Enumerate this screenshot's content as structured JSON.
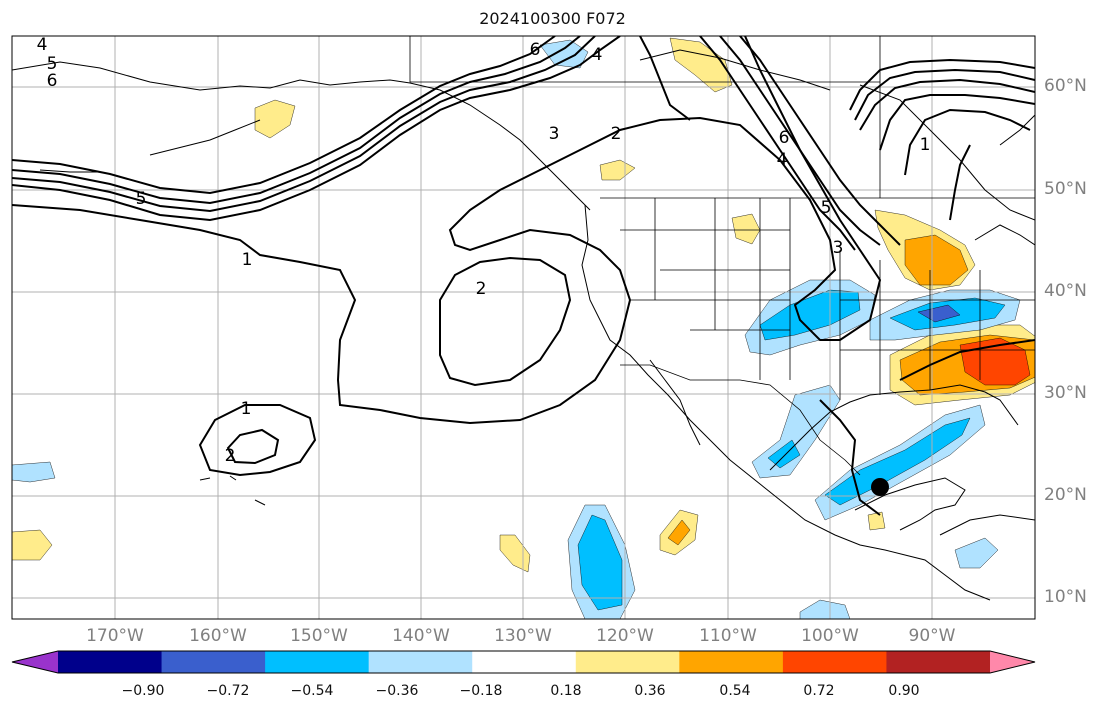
{
  "title": "2024100300 F072",
  "map": {
    "projection": "PlateCarree",
    "extent_lon": [
      -180,
      -80
    ],
    "extent_lat": [
      8,
      65
    ],
    "marker": {
      "label": "storm-center",
      "lon": -94.5,
      "lat": 20.5,
      "color": "#000000"
    }
  },
  "longitude_labels": [
    "170°W",
    "160°W",
    "150°W",
    "140°W",
    "130°W",
    "120°W",
    "110°W",
    "100°W",
    "90°W"
  ],
  "latitude_labels": [
    "60°N",
    "50°N",
    "40°N",
    "30°N",
    "20°N",
    "10°N"
  ],
  "contour_labels": [
    "4",
    "5",
    "6",
    "6",
    "4",
    "3",
    "2",
    "5",
    "1",
    "2",
    "1",
    "2",
    "6",
    "4",
    "5",
    "3",
    "1"
  ],
  "colorbar": {
    "colors": [
      "#9933cc",
      "#00008b",
      "#3a5fcd",
      "#00bfff",
      "#b0e2ff",
      "#ffffff",
      "#ffec8b",
      "#ffa500",
      "#ff4500",
      "#b22222",
      "#ff88aa"
    ],
    "tick_labels": [
      "−0.90",
      "−0.72",
      "−0.54",
      "−0.36",
      "−0.18",
      "0.18",
      "0.36",
      "0.54",
      "0.72",
      "0.90"
    ]
  }
}
